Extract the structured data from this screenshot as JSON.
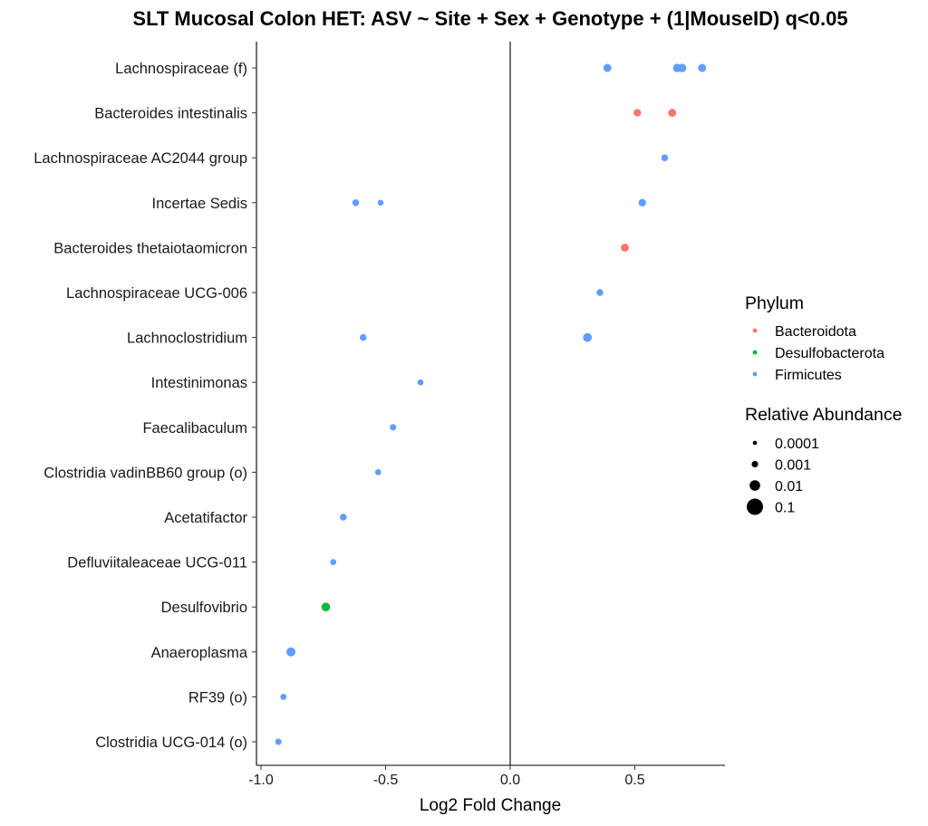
{
  "chart_data": {
    "type": "scatter",
    "title": "SLT Mucosal Colon HET: ASV ~ Site + Sex + Genotype + (1|MouseID) q<0.05",
    "xlabel": "Log2 Fold Change",
    "ylabel": "",
    "xlim": [
      -1.0,
      0.86
    ],
    "xticks": [
      -1.0,
      -0.5,
      0.0,
      0.5
    ],
    "xtick_labels": [
      "-1.0",
      "-0.5",
      "0.0",
      "0.5"
    ],
    "vline_at": 0,
    "grid": false,
    "categories": [
      "Lachnospiraceae (f)",
      "Bacteroides intestinalis",
      "Lachnospiraceae AC2044 group",
      "Incertae Sedis",
      "Bacteroides thetaiotaomicron",
      "Lachnospiraceae UCG-006",
      "Lachnoclostridium",
      "Intestinimonas",
      "Faecalibaculum",
      "Clostridia vadinBB60 group (o)",
      "Acetatifactor",
      "Defluviitaleaceae UCG-011",
      "Desulfovibrio",
      "Anaeroplasma",
      "RF39 (o)",
      "Clostridia UCG-014 (o)"
    ],
    "points": [
      {
        "category": "Lachnospiraceae (f)",
        "x": 0.39,
        "phylum": "Firmicutes",
        "abundance": 0.003
      },
      {
        "category": "Lachnospiraceae (f)",
        "x": 0.67,
        "phylum": "Firmicutes",
        "abundance": 0.004
      },
      {
        "category": "Lachnospiraceae (f)",
        "x": 0.69,
        "phylum": "Firmicutes",
        "abundance": 0.004
      },
      {
        "category": "Lachnospiraceae (f)",
        "x": 0.77,
        "phylum": "Firmicutes",
        "abundance": 0.003
      },
      {
        "category": "Bacteroides intestinalis",
        "x": 0.51,
        "phylum": "Bacteroidota",
        "abundance": 0.002
      },
      {
        "category": "Bacteroides intestinalis",
        "x": 0.65,
        "phylum": "Bacteroidota",
        "abundance": 0.003
      },
      {
        "category": "Lachnospiraceae AC2044 group",
        "x": 0.62,
        "phylum": "Firmicutes",
        "abundance": 0.001
      },
      {
        "category": "Incertae Sedis",
        "x": -0.62,
        "phylum": "Firmicutes",
        "abundance": 0.001
      },
      {
        "category": "Incertae Sedis",
        "x": -0.52,
        "phylum": "Firmicutes",
        "abundance": 0.0005
      },
      {
        "category": "Incertae Sedis",
        "x": 0.53,
        "phylum": "Firmicutes",
        "abundance": 0.002
      },
      {
        "category": "Bacteroides thetaiotaomicron",
        "x": 0.46,
        "phylum": "Bacteroidota",
        "abundance": 0.003
      },
      {
        "category": "Lachnospiraceae UCG-006",
        "x": 0.36,
        "phylum": "Firmicutes",
        "abundance": 0.001
      },
      {
        "category": "Lachnoclostridium",
        "x": -0.59,
        "phylum": "Firmicutes",
        "abundance": 0.001
      },
      {
        "category": "Lachnoclostridium",
        "x": 0.31,
        "phylum": "Firmicutes",
        "abundance": 0.006
      },
      {
        "category": "Intestinimonas",
        "x": -0.36,
        "phylum": "Firmicutes",
        "abundance": 0.0005
      },
      {
        "category": "Faecalibaculum",
        "x": -0.47,
        "phylum": "Firmicutes",
        "abundance": 0.0007
      },
      {
        "category": "Clostridia vadinBB60 group (o)",
        "x": -0.53,
        "phylum": "Firmicutes",
        "abundance": 0.0005
      },
      {
        "category": "Acetatifactor",
        "x": -0.67,
        "phylum": "Firmicutes",
        "abundance": 0.001
      },
      {
        "category": "Defluviitaleaceae UCG-011",
        "x": -0.71,
        "phylum": "Firmicutes",
        "abundance": 0.0005
      },
      {
        "category": "Desulfovibrio",
        "x": -0.74,
        "phylum": "Desulfobacterota",
        "abundance": 0.005
      },
      {
        "category": "Anaeroplasma",
        "x": -0.88,
        "phylum": "Firmicutes",
        "abundance": 0.007
      },
      {
        "category": "RF39 (o)",
        "x": -0.91,
        "phylum": "Firmicutes",
        "abundance": 0.0006
      },
      {
        "category": "Clostridia UCG-014 (o)",
        "x": -0.93,
        "phylum": "Firmicutes",
        "abundance": 0.0007
      }
    ],
    "legend": {
      "placement": "right",
      "color_title": "Phylum",
      "color_entries": [
        {
          "label": "Bacteroidota",
          "color": "#F8766D"
        },
        {
          "label": "Desulfobacterota",
          "color": "#00BA38"
        },
        {
          "label": "Firmicutes",
          "color": "#619CFF"
        }
      ],
      "size_title": "Relative Abundance",
      "size_entries": [
        {
          "label": "0.0001",
          "value": 0.0001
        },
        {
          "label": "0.001",
          "value": 0.001
        },
        {
          "label": "0.01",
          "value": 0.01
        },
        {
          "label": "0.1",
          "value": 0.1
        }
      ]
    }
  }
}
